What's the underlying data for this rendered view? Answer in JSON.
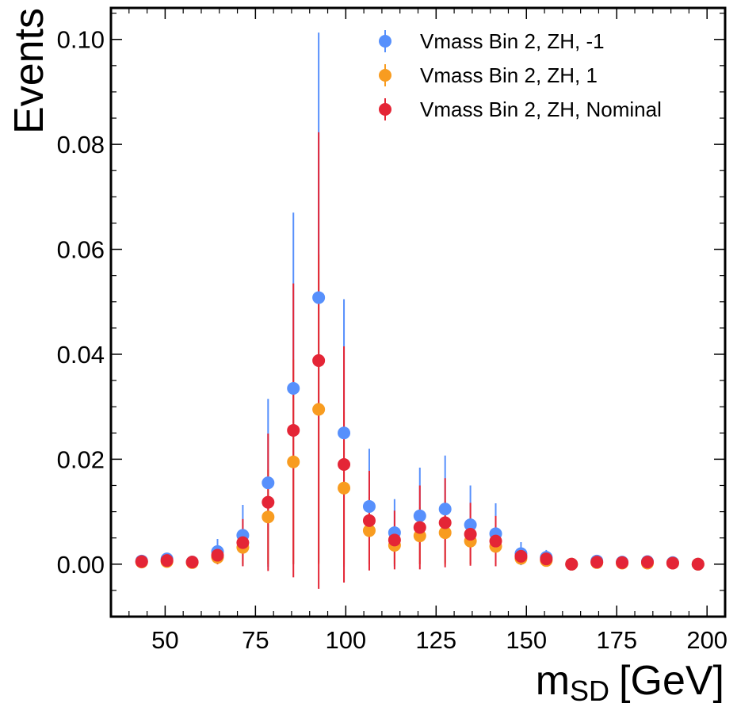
{
  "chart_data": {
    "type": "scatter",
    "xlabel": "m",
    "xlabel_sub": "SD",
    "xlabel_unit": "[GeV]",
    "ylabel": "Events",
    "xlim": [
      35,
      205
    ],
    "ylim": [
      -0.01,
      0.106
    ],
    "x_ticks": [
      50,
      75,
      100,
      125,
      150,
      175,
      200
    ],
    "x_tick_labels": [
      "50",
      "75",
      "100",
      "125",
      "150",
      "175",
      "200"
    ],
    "y_ticks": [
      0.0,
      0.02,
      0.04,
      0.06,
      0.08,
      0.1
    ],
    "y_tick_labels": [
      "0.00",
      "0.02",
      "0.04",
      "0.06",
      "0.08",
      "0.10"
    ],
    "grid": false,
    "legend_position": "top-right",
    "x": [
      43.5,
      50.5,
      57.5,
      64.5,
      71.5,
      78.5,
      85.5,
      92.5,
      99.5,
      106.5,
      113.5,
      120.5,
      127.5,
      134.5,
      141.5,
      148.5,
      155.5,
      162.5,
      169.5,
      176.5,
      183.5,
      190.5,
      197.5
    ],
    "series": [
      {
        "name": "Vmass Bin 2, ZH, -1",
        "color": "#5790fc",
        "values": [
          0.0006,
          0.001,
          0.0004,
          0.0024,
          0.0055,
          0.0155,
          0.0335,
          0.0508,
          0.025,
          0.011,
          0.006,
          0.0092,
          0.0105,
          0.0075,
          0.0058,
          0.002,
          0.0013,
          0.0,
          0.0006,
          0.0004,
          0.0005,
          0.0003,
          0.0
        ],
        "errors": [
          0.0004,
          0.0005,
          0.0003,
          0.0024,
          0.0058,
          0.016,
          0.0335,
          0.0505,
          0.0255,
          0.011,
          0.0064,
          0.0092,
          0.0102,
          0.0075,
          0.0058,
          0.0022,
          0.0014,
          0.0002,
          0.0004,
          0.0003,
          0.0004,
          0.0003,
          0.0002
        ]
      },
      {
        "name": "Vmass Bin 2, ZH, 1",
        "color": "#f89c20",
        "values": [
          0.0004,
          0.0005,
          0.0003,
          0.0013,
          0.0032,
          0.009,
          0.0195,
          0.0295,
          0.0145,
          0.0064,
          0.0036,
          0.0054,
          0.006,
          0.0044,
          0.0034,
          0.0011,
          0.0007,
          0.0,
          0.0003,
          0.0002,
          0.0002,
          0.0002,
          0.0
        ],
        "errors": [
          0.0003,
          0.0004,
          0.0002,
          0.0013,
          0.0032,
          0.009,
          0.0195,
          0.0295,
          0.0145,
          0.0064,
          0.0036,
          0.0054,
          0.006,
          0.0044,
          0.0034,
          0.0011,
          0.0007,
          0.0001,
          0.0003,
          0.0002,
          0.0002,
          0.0002,
          0.0001
        ]
      },
      {
        "name": "Vmass Bin 2, ZH, Nominal",
        "color": "#e42536",
        "values": [
          0.0005,
          0.0007,
          0.0004,
          0.0017,
          0.0041,
          0.0118,
          0.0255,
          0.0388,
          0.019,
          0.0083,
          0.0046,
          0.007,
          0.0079,
          0.0057,
          0.0044,
          0.0015,
          0.001,
          0.0,
          0.0004,
          0.0003,
          0.0004,
          0.0002,
          0.0
        ],
        "errors": [
          0.0004,
          0.0005,
          0.0003,
          0.0017,
          0.0045,
          0.0131,
          0.028,
          0.0435,
          0.0225,
          0.0095,
          0.0056,
          0.008,
          0.0085,
          0.006,
          0.0048,
          0.0016,
          0.001,
          0.0001,
          0.0004,
          0.0003,
          0.0003,
          0.0002,
          0.0001
        ]
      }
    ]
  }
}
